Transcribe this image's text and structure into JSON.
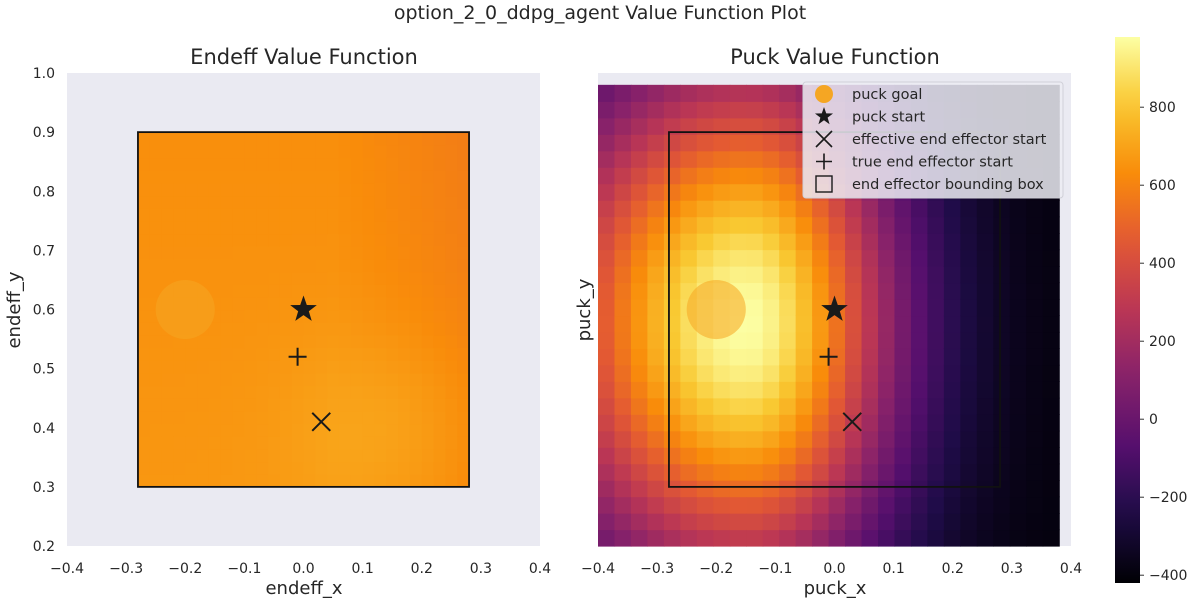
{
  "figure_title": "option_2_0_ddpg_agent Value Function Plot",
  "colors": {
    "axes_bg": "#eaeaf2",
    "box_stroke": "#111111",
    "puck_goal": "#f5a623",
    "marker": "#1a1a1a",
    "legend_bg": "#ececf3"
  },
  "chart_data": [
    {
      "type": "heatmap",
      "id": "endeff",
      "title": "Endeff Value Function",
      "xlabel": "endeff_x",
      "ylabel": "endeff_y",
      "xlim": [
        -0.4,
        0.4
      ],
      "ylim": [
        0.2,
        1.0
      ],
      "xticks": [
        "−0.4",
        "−0.3",
        "−0.2",
        "−0.1",
        "0.0",
        "0.1",
        "0.2",
        "0.3",
        "0.4"
      ],
      "yticks": [
        "0.2",
        "0.3",
        "0.4",
        "0.5",
        "0.6",
        "0.7",
        "0.8",
        "0.9",
        "1.0"
      ],
      "heatmap_extent": {
        "x": [
          -0.28,
          0.28
        ],
        "y": [
          0.3,
          0.9
        ]
      },
      "value_model": {
        "base": 650,
        "x_slope": -250,
        "y_slope": -40,
        "bump_amp": 60,
        "bump_center": [
          0.15,
          0.4
        ],
        "bump_width": 0.12
      },
      "bounding_box": {
        "x": [
          -0.28,
          0.28
        ],
        "y": [
          0.3,
          0.9
        ]
      },
      "puck_goal": {
        "x": -0.2,
        "y": 0.6,
        "radius": 0.05
      },
      "puck_start": {
        "x": 0.0,
        "y": 0.6
      },
      "effective_end_effector_start": {
        "x": 0.03,
        "y": 0.41
      },
      "true_end_effector_start": {
        "x": -0.01,
        "y": 0.52
      }
    },
    {
      "type": "heatmap",
      "id": "puck",
      "title": "Puck Value Function",
      "xlabel": "puck_x",
      "ylabel": "puck_y",
      "xlim": [
        -0.4,
        0.4
      ],
      "ylim": [
        0.2,
        1.0
      ],
      "xticks": [
        "−0.4",
        "−0.3",
        "−0.2",
        "−0.1",
        "0.0",
        "0.1",
        "0.2",
        "0.3",
        "0.4"
      ],
      "yticks": [],
      "heatmap_extent": {
        "x": [
          -0.4,
          0.38
        ],
        "y": [
          0.2,
          0.98
        ]
      },
      "value_model": {
        "peak": 980,
        "peak_center": [
          -0.15,
          0.58
        ],
        "x_scale_left": 0.35,
        "x_scale_right": 0.25,
        "y_scale": 0.45,
        "floor": -400
      },
      "bounding_box": {
        "x": [
          -0.28,
          0.28
        ],
        "y": [
          0.3,
          0.9
        ]
      },
      "puck_goal": {
        "x": -0.2,
        "y": 0.6,
        "radius": 0.05
      },
      "puck_start": {
        "x": 0.0,
        "y": 0.6
      },
      "effective_end_effector_start": {
        "x": 0.03,
        "y": 0.41
      },
      "true_end_effector_start": {
        "x": -0.01,
        "y": 0.52
      }
    }
  ],
  "legend": [
    {
      "label": "puck goal",
      "icon": "filled-circle"
    },
    {
      "label": "puck start",
      "icon": "star"
    },
    {
      "label": "effective end effector start",
      "icon": "x-mark"
    },
    {
      "label": "true end effector start",
      "icon": "plus"
    },
    {
      "label": "end effector bounding box",
      "icon": "open-square"
    }
  ],
  "colorbar": {
    "colormap": "inferno",
    "vmin": -420,
    "vmax": 980,
    "ticks": [
      -400,
      -200,
      0,
      200,
      400,
      600,
      800
    ],
    "tick_labels": [
      "−400",
      "−200",
      "0",
      "200",
      "400",
      "600",
      "800"
    ]
  }
}
